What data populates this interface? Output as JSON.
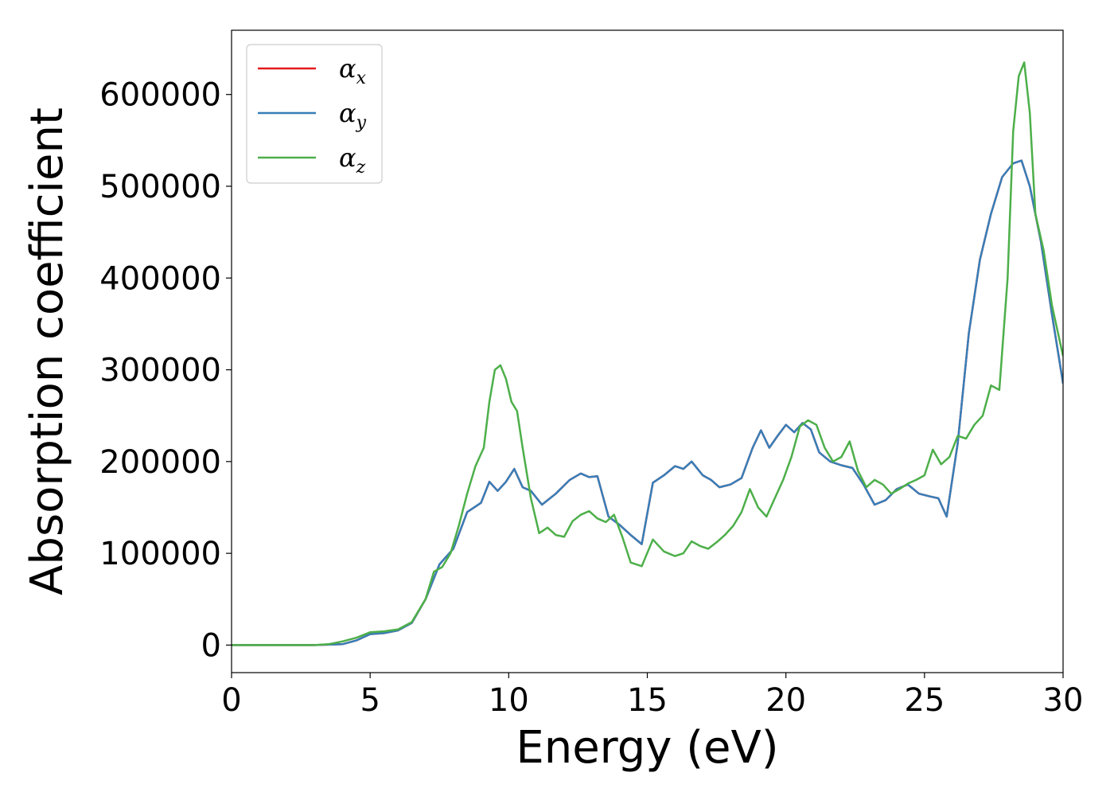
{
  "chart_data": {
    "type": "line",
    "title": "",
    "xlabel": "Energy (eV)",
    "ylabel": "Absorption coefficient",
    "xlim": [
      0,
      30
    ],
    "ylim": [
      -30000,
      670000
    ],
    "xticks": [
      "0",
      "5",
      "10",
      "15",
      "20",
      "25",
      "30"
    ],
    "yticks": [
      "0",
      "100000",
      "200000",
      "300000",
      "400000",
      "500000",
      "600000"
    ],
    "grid": false,
    "legend_position": "top-left",
    "series": [
      {
        "name": "α",
        "subscript": "x",
        "color": "#e41a1c",
        "x": [
          0,
          3,
          4,
          4.5,
          5,
          5.5,
          6,
          6.5,
          7,
          7.5,
          8,
          8.5,
          9,
          9.3,
          9.6,
          9.9,
          10.2,
          10.5,
          10.8,
          11.2,
          11.7,
          12.2,
          12.6,
          12.9,
          13.2,
          13.6,
          14,
          14.4,
          14.8,
          15.2,
          15.6,
          16,
          16.3,
          16.6,
          17,
          17.3,
          17.6,
          18,
          18.4,
          18.8,
          19.1,
          19.4,
          19.7,
          20,
          20.3,
          20.6,
          20.9,
          21.2,
          21.6,
          22,
          22.4,
          22.8,
          23.2,
          23.6,
          24,
          24.4,
          24.8,
          25.2,
          25.5,
          25.8,
          26.2,
          26.6,
          27,
          27.4,
          27.8,
          28.2,
          28.5,
          28.8,
          29.2,
          29.6,
          30
        ],
        "y": [
          0,
          0,
          1000,
          5000,
          12000,
          13000,
          16000,
          24000,
          50000,
          88000,
          105000,
          145000,
          155000,
          178000,
          168000,
          178000,
          192000,
          172000,
          168000,
          153000,
          165000,
          180000,
          187000,
          183000,
          184000,
          140000,
          131000,
          120000,
          110000,
          177000,
          185000,
          195000,
          192000,
          200000,
          185000,
          180000,
          172000,
          175000,
          182000,
          215000,
          234000,
          215000,
          228000,
          240000,
          232000,
          242000,
          235000,
          210000,
          200000,
          196000,
          193000,
          175000,
          153000,
          158000,
          170000,
          175000,
          165000,
          162000,
          160000,
          140000,
          220000,
          340000,
          420000,
          470000,
          510000,
          525000,
          528000,
          500000,
          440000,
          360000,
          285000
        ]
      },
      {
        "name": "α",
        "subscript": "y",
        "color": "#377eb8",
        "x": [
          0,
          3,
          4,
          4.5,
          5,
          5.5,
          6,
          6.5,
          7,
          7.5,
          8,
          8.5,
          9,
          9.3,
          9.6,
          9.9,
          10.2,
          10.5,
          10.8,
          11.2,
          11.7,
          12.2,
          12.6,
          12.9,
          13.2,
          13.6,
          14,
          14.4,
          14.8,
          15.2,
          15.6,
          16,
          16.3,
          16.6,
          17,
          17.3,
          17.6,
          18,
          18.4,
          18.8,
          19.1,
          19.4,
          19.7,
          20,
          20.3,
          20.6,
          20.9,
          21.2,
          21.6,
          22,
          22.4,
          22.8,
          23.2,
          23.6,
          24,
          24.4,
          24.8,
          25.2,
          25.5,
          25.8,
          26.2,
          26.6,
          27,
          27.4,
          27.8,
          28.2,
          28.5,
          28.8,
          29.2,
          29.6,
          30
        ],
        "y": [
          0,
          0,
          1000,
          5000,
          12000,
          13000,
          16000,
          24000,
          50000,
          88000,
          105000,
          145000,
          155000,
          178000,
          168000,
          178000,
          192000,
          172000,
          168000,
          153000,
          165000,
          180000,
          187000,
          183000,
          184000,
          140000,
          131000,
          120000,
          110000,
          177000,
          185000,
          195000,
          192000,
          200000,
          185000,
          180000,
          172000,
          175000,
          182000,
          215000,
          234000,
          215000,
          228000,
          240000,
          232000,
          242000,
          235000,
          210000,
          200000,
          196000,
          193000,
          175000,
          153000,
          158000,
          170000,
          175000,
          165000,
          162000,
          160000,
          140000,
          220000,
          340000,
          420000,
          470000,
          510000,
          525000,
          528000,
          500000,
          440000,
          360000,
          285000
        ]
      },
      {
        "name": "α",
        "subscript": "z",
        "color": "#4daf4a",
        "x": [
          0,
          3,
          3.5,
          4,
          4.5,
          5,
          5.5,
          6,
          6.5,
          7,
          7.3,
          7.6,
          7.9,
          8.2,
          8.5,
          8.8,
          9.1,
          9.3,
          9.5,
          9.7,
          9.9,
          10.1,
          10.3,
          10.5,
          10.8,
          11.1,
          11.4,
          11.7,
          12,
          12.3,
          12.6,
          12.9,
          13.2,
          13.5,
          13.8,
          14.1,
          14.4,
          14.8,
          15.2,
          15.6,
          16,
          16.3,
          16.6,
          16.9,
          17.2,
          17.5,
          17.8,
          18.1,
          18.4,
          18.7,
          19,
          19.3,
          19.6,
          19.9,
          20.2,
          20.5,
          20.8,
          21.1,
          21.4,
          21.7,
          22,
          22.3,
          22.6,
          22.9,
          23.2,
          23.5,
          23.8,
          24.1,
          24.4,
          24.7,
          25,
          25.3,
          25.6,
          25.9,
          26.2,
          26.5,
          26.8,
          27.1,
          27.4,
          27.7,
          28,
          28.2,
          28.4,
          28.6,
          28.8,
          29,
          29.3,
          29.6,
          30
        ],
        "y": [
          0,
          0,
          1000,
          4000,
          8000,
          14000,
          15000,
          17000,
          25000,
          50000,
          80000,
          85000,
          100000,
          130000,
          165000,
          195000,
          215000,
          265000,
          300000,
          305000,
          290000,
          265000,
          255000,
          215000,
          160000,
          122000,
          128000,
          120000,
          118000,
          135000,
          142000,
          146000,
          138000,
          134000,
          142000,
          118000,
          90000,
          86000,
          115000,
          102000,
          97000,
          100000,
          113000,
          108000,
          105000,
          112000,
          120000,
          130000,
          145000,
          170000,
          150000,
          140000,
          160000,
          180000,
          205000,
          238000,
          245000,
          240000,
          215000,
          200000,
          205000,
          222000,
          190000,
          172000,
          180000,
          175000,
          165000,
          170000,
          176000,
          180000,
          185000,
          213000,
          197000,
          205000,
          228000,
          225000,
          240000,
          250000,
          283000,
          278000,
          400000,
          560000,
          620000,
          635000,
          580000,
          470000,
          430000,
          370000,
          315000
        ]
      }
    ]
  }
}
